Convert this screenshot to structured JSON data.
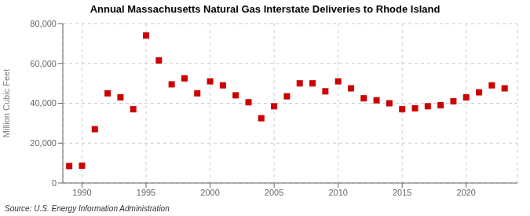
{
  "chart_data": {
    "type": "scatter",
    "title": "Annual Massachusetts Natural Gas Interstate Deliveries to Rhode Island",
    "ylabel": "Million Cubic Feet",
    "annotation": "Source: U.S. Energy Information Administration",
    "x": [
      1989,
      1990,
      1991,
      1992,
      1993,
      1994,
      1995,
      1996,
      1997,
      1998,
      1999,
      2000,
      2001,
      2002,
      2003,
      2004,
      2005,
      2006,
      2007,
      2008,
      2009,
      2010,
      2011,
      2012,
      2013,
      2014,
      2015,
      2016,
      2017,
      2018,
      2019,
      2020,
      2021,
      2022,
      2023
    ],
    "values": [
      8500,
      8700,
      27000,
      45000,
      43000,
      37000,
      74000,
      61500,
      49500,
      52500,
      45000,
      51000,
      49000,
      44000,
      40500,
      32500,
      38500,
      43500,
      50000,
      50000,
      46000,
      51000,
      47500,
      42500,
      41500,
      40000,
      37000,
      37500,
      38500,
      39000,
      41000,
      43000,
      45500,
      49000,
      47500
    ],
    "color": "#cc0000",
    "marker": "square",
    "xlim": [
      1988.5,
      2024
    ],
    "ylim": [
      0,
      80000
    ],
    "xticks": [
      1990,
      1995,
      2000,
      2005,
      2010,
      2015,
      2020
    ],
    "yticks": [
      0,
      {
        "value": 20000,
        "label": "20,000"
      },
      {
        "value": 40000,
        "label": "40,000"
      },
      {
        "value": 60000,
        "label": "60,000"
      },
      {
        "value": 80000,
        "label": "80,000"
      }
    ],
    "grid": true
  }
}
